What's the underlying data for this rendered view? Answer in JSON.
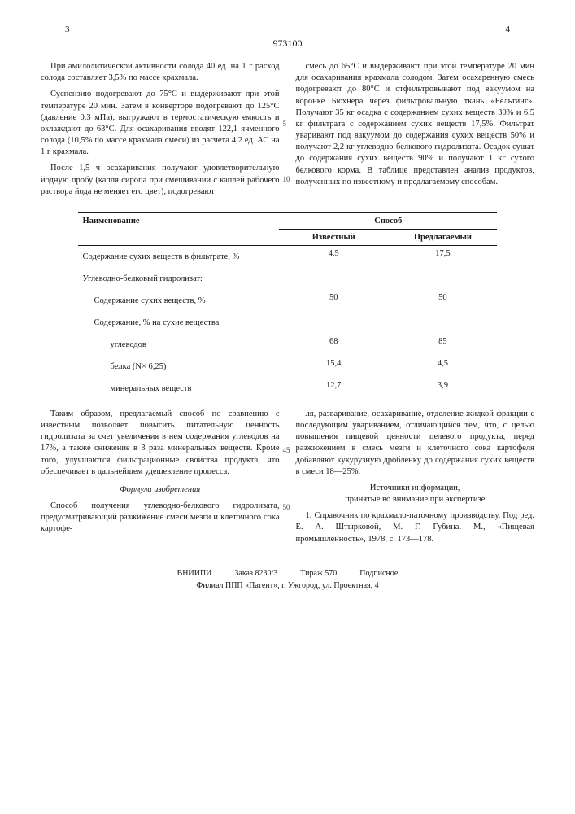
{
  "page_left_num": "3",
  "page_right_num": "4",
  "doc_number": "973100",
  "col_left": {
    "p1": "При амилолитической активности солода 40 ед. на 1 г расход солода составляет 3,5% по массе крахмала.",
    "p2": "Суспензию подогревают до 75°С и выдерживают при этой температуре 20 мин. Затем в конверторе подогревают до 125°С (давление 0,3 мПа), выгружают в термостатическую емкость и охлаждают до 63°С. Для осахаривания вводят 122,1 ячменного солода (10,5% по массе крахмала смеси) из расчета 4,2 ед. АС на 1 г крахмала.",
    "p3": "После 1,5 ч осахаривания получают удовлетворительную йодную пробу (капля сиропа при смешивании с каплей рабочего раствора йода не меняет его цвет), подогревают"
  },
  "col_right": {
    "p1": "смесь до 65°С и выдерживают при этой температуре 20 мин для осахаривания крахмала солодом. Затем осахаренную смесь подогревают до 80°С и отфильтровывают под вакуумом на воронке Бюхнера через фильтровальную ткань «Бельтинг». Получают 35 кг осадка с содержанием сухих веществ 30% и 6,5 кг фильтрата с содержанием сухих веществ 17,5%. Фильтрат уваривают под вакуумом до содержания сухих веществ 50% и получают 2,2 кг углеводно-белкового гидролизата. Осадок сушат до содержания сухих веществ 90% и получают 1 кг сухого белкового корма. В таблице представлен анализ продуктов, полученных по известному и предлагаемому способам."
  },
  "table": {
    "head_name": "Наименование",
    "head_method": "Способ",
    "sub_known": "Известный",
    "sub_proposed": "Предлагаемый",
    "rows": [
      {
        "label": "Содержание сухих веществ в фильтрате, %",
        "v1": "4,5",
        "v2": "17,5",
        "indent": 0
      },
      {
        "label": "Углеводно-белковый гидролизат:",
        "v1": "",
        "v2": "",
        "indent": 0
      },
      {
        "label": "Содержание сухих веществ, %",
        "v1": "50",
        "v2": "50",
        "indent": 1
      },
      {
        "label": "Содержание, % на сухие вещества",
        "v1": "",
        "v2": "",
        "indent": 1
      },
      {
        "label": "углеводов",
        "v1": "68",
        "v2": "85",
        "indent": 2
      },
      {
        "label": "белка (N× 6,25)",
        "v1": "15,4",
        "v2": "4,5",
        "indent": 2
      },
      {
        "label": "минеральных веществ",
        "v1": "12,7",
        "v2": "3,9",
        "indent": 2
      }
    ]
  },
  "bottom_left": {
    "p1": "Таким образом, предлагаемый способ по сравнению с известным позволяет повысить питательную ценность гидролизата за счет увеличения в нем содержания углеводов на 17%, а также снижение в 3 раза минеральных веществ. Кроме того, улучшаются фильтрационные свойства продукта, что обеспечивает в дальнейшем удешевление процесса.",
    "formula_head": "Формула изобретения",
    "p2": "Способ получения углеводно-белкового гидролизата, предусматривающий разжижение смеси мезги и клеточного сока картофе-"
  },
  "bottom_right": {
    "p1": "ля, разваривание, осахаривание, отделение жидкой фракции с последующим увариванием, отличающийся тем, что, с целью повышения пищевой ценности целевого продукта, перед разжижением в смесь мезги и клеточного сока картофеля добавляют кукурузную дробленку до содержания сухих веществ в смеси 18—25%.",
    "src_head": "Источники информации,",
    "src_sub": "принятые во внимание при экспертизе",
    "p2": "1. Справочник по крахмало-паточному производству. Под ред. Е. А. Штырковой, М. Г. Губина. М., «Пищевая промышленность», 1978, с. 173—178."
  },
  "line_markers": {
    "m5": "5",
    "m10": "10",
    "m45": "45",
    "m50": "50"
  },
  "footer": {
    "l1a": "ВНИИПИ",
    "l1b": "Заказ 8230/3",
    "l1c": "Тираж 570",
    "l1d": "Подписное",
    "l2": "Филиал ППП «Патент», г. Ужгород, ул. Проектная, 4"
  }
}
